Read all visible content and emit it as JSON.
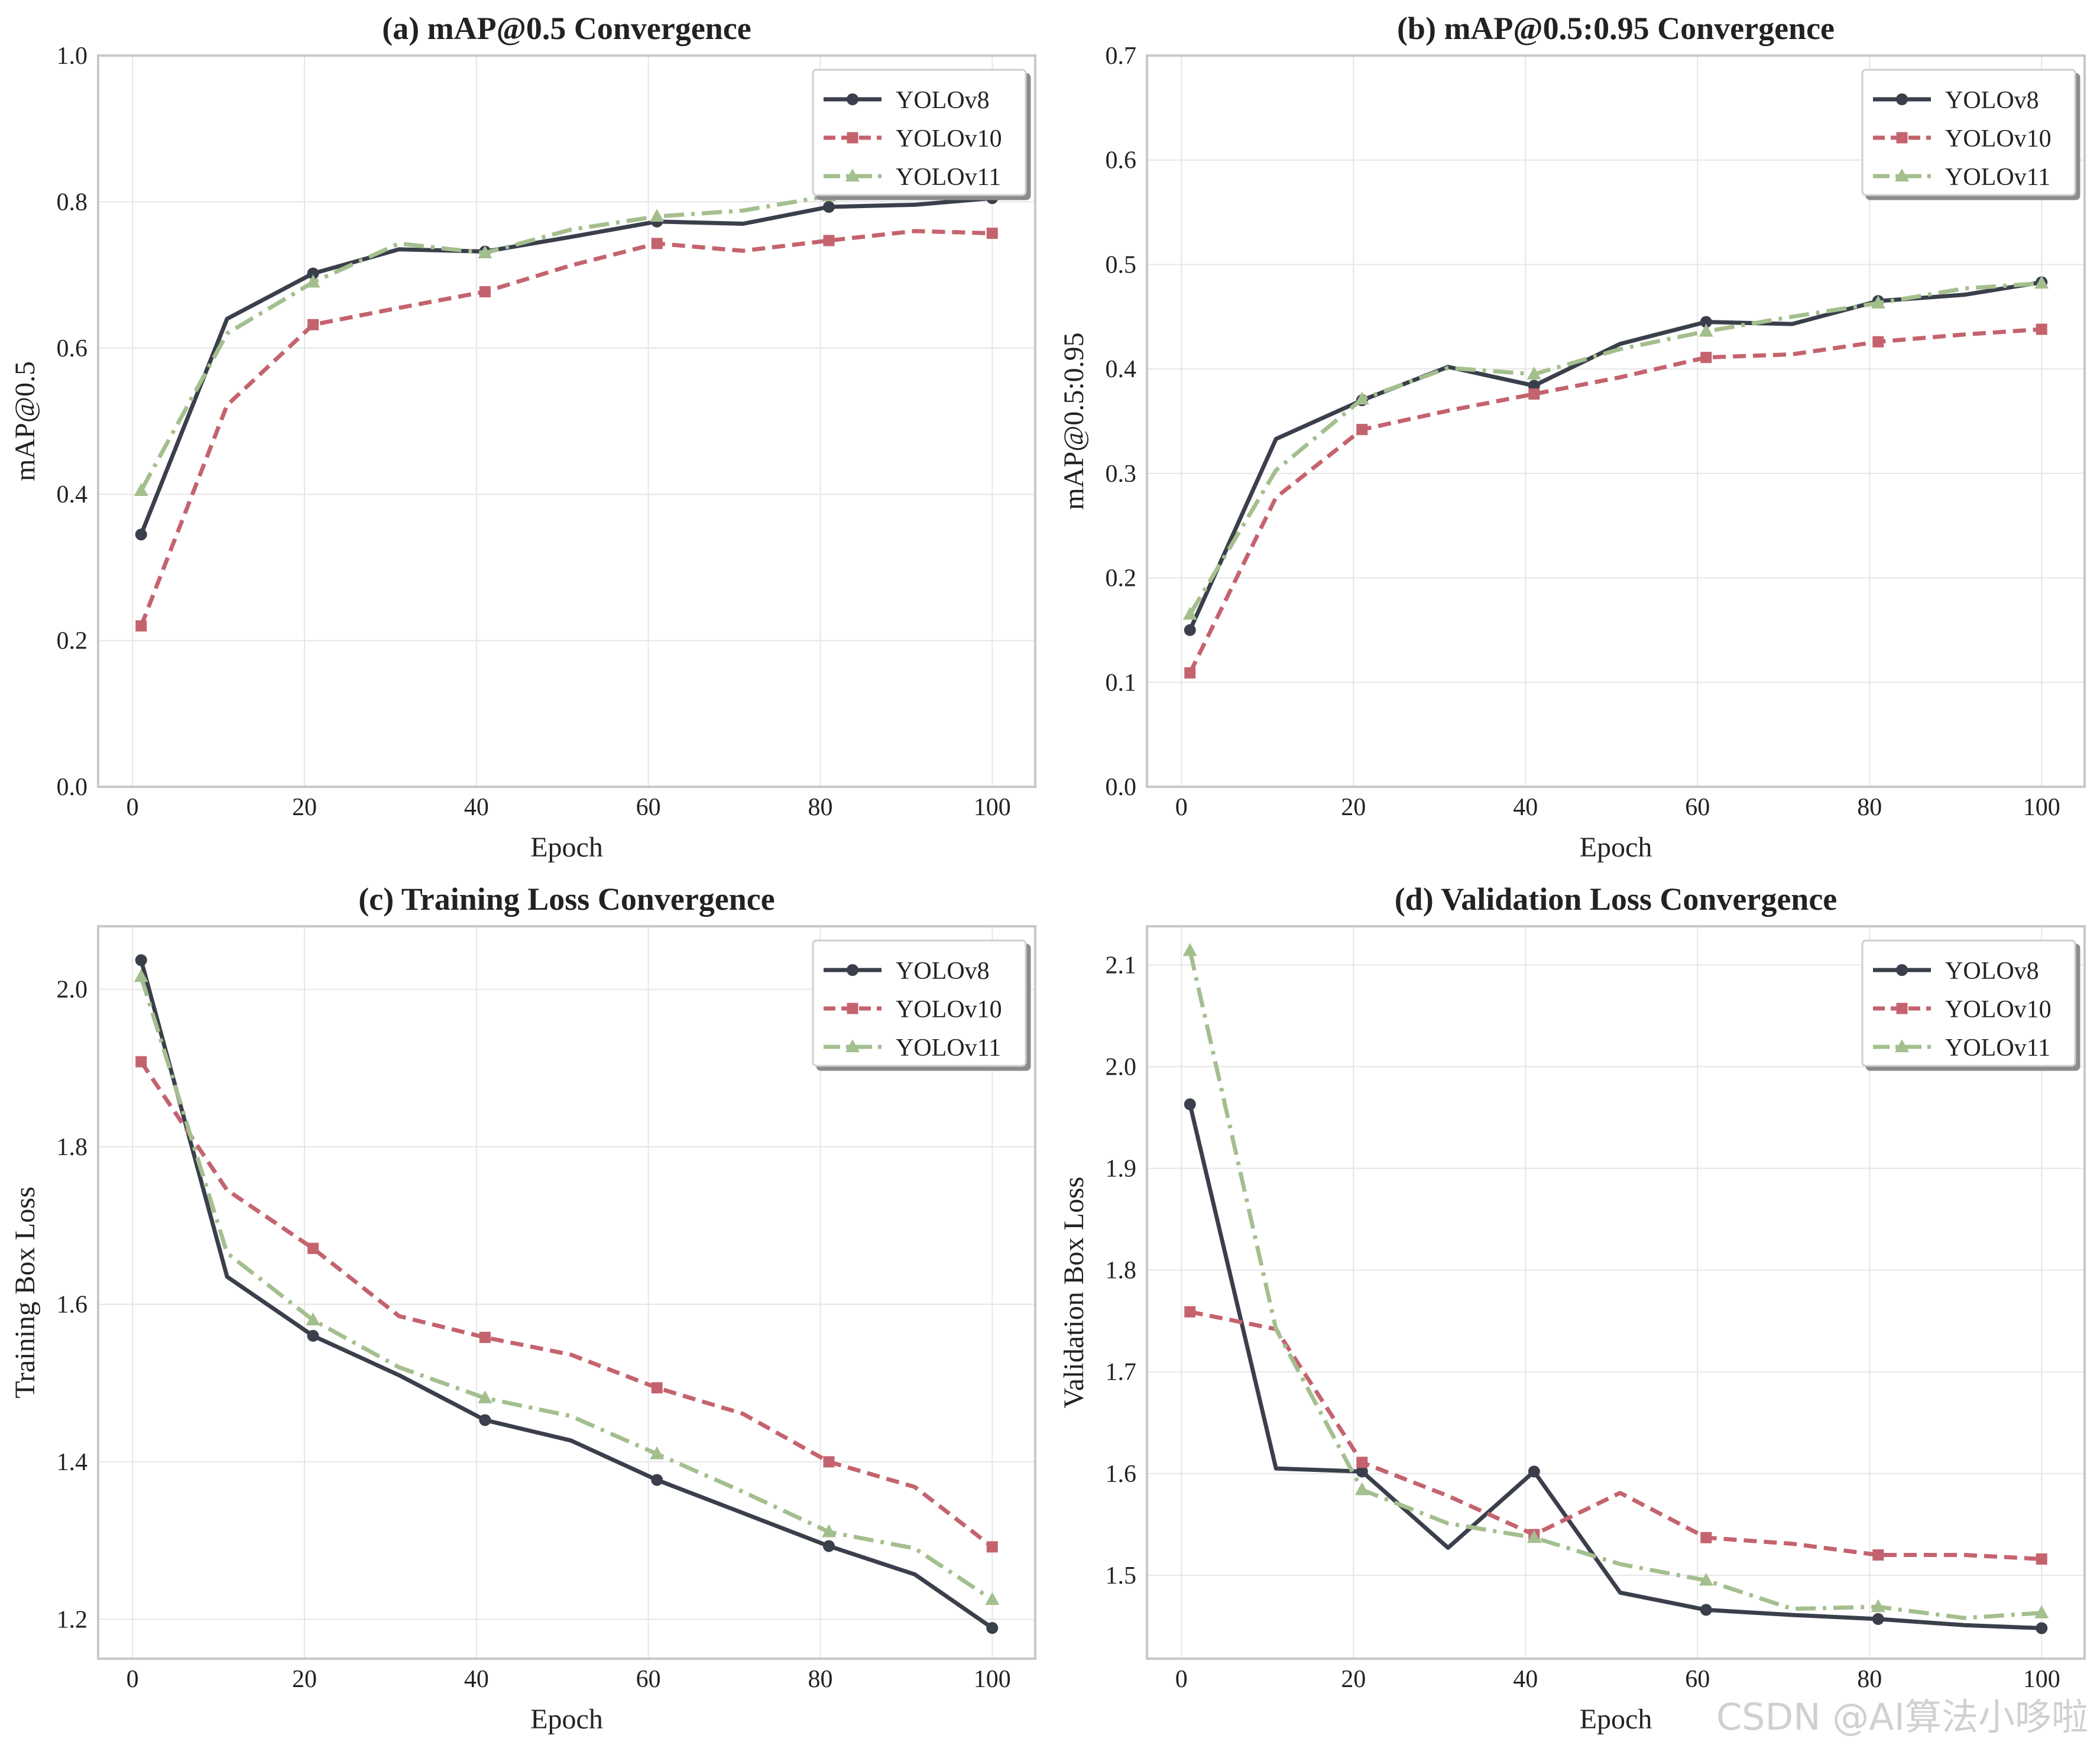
{
  "watermark": "CSDN @AI算法小哆啦",
  "colors": {
    "yolov8": "#3a3f4b",
    "yolov10": "#c4636e",
    "yolov11": "#a3bf8e",
    "grid": "#e6e6e6",
    "frame": "#c8c8c8"
  },
  "chart_data": [
    {
      "type": "line",
      "title": "(a) mAP@0.5 Convergence",
      "xlabel": "Epoch",
      "ylabel": "mAP@0.5",
      "xlim": [
        -4,
        105
      ],
      "ylim": [
        0.0,
        1.0
      ],
      "xticks": [
        0,
        20,
        40,
        60,
        80,
        100
      ],
      "xtick_labels": [
        "0",
        "20",
        "40",
        "60",
        "80",
        "100"
      ],
      "yticks": [
        0.0,
        0.2,
        0.4,
        0.6,
        0.8,
        1.0
      ],
      "ytick_labels": [
        "0.0",
        "0.2",
        "0.4",
        "0.6",
        "0.8",
        "1.0"
      ],
      "legend_position": "top-right",
      "x": [
        1,
        11,
        21,
        31,
        41,
        51,
        61,
        71,
        81,
        91,
        100
      ],
      "series": [
        {
          "name": "YOLOv8",
          "key": "yolov8",
          "values": [
            0.345,
            0.64,
            0.702,
            0.735,
            0.732,
            0.752,
            0.773,
            0.77,
            0.793,
            0.796,
            0.805
          ]
        },
        {
          "name": "YOLOv10",
          "key": "yolov10",
          "values": [
            0.22,
            0.522,
            0.632,
            0.655,
            0.677,
            0.713,
            0.743,
            0.733,
            0.747,
            0.76,
            0.757
          ]
        },
        {
          "name": "YOLOv11",
          "key": "yolov11",
          "values": [
            0.405,
            0.62,
            0.69,
            0.743,
            0.73,
            0.762,
            0.78,
            0.788,
            0.808,
            0.812,
            0.815
          ]
        }
      ]
    },
    {
      "type": "line",
      "title": "(b) mAP@0.5:0.95 Convergence",
      "xlabel": "Epoch",
      "ylabel": "mAP@0.5:0.95",
      "xlim": [
        -4,
        105
      ],
      "ylim": [
        0.0,
        0.7
      ],
      "xticks": [
        0,
        20,
        40,
        60,
        80,
        100
      ],
      "xtick_labels": [
        "0",
        "20",
        "40",
        "60",
        "80",
        "100"
      ],
      "yticks": [
        0.0,
        0.1,
        0.2,
        0.3,
        0.4,
        0.5,
        0.6,
        0.7
      ],
      "ytick_labels": [
        "0.0",
        "0.1",
        "0.2",
        "0.3",
        "0.4",
        "0.5",
        "0.6",
        "0.7"
      ],
      "legend_position": "top-right",
      "x": [
        1,
        11,
        21,
        31,
        41,
        51,
        61,
        71,
        81,
        91,
        100
      ],
      "series": [
        {
          "name": "YOLOv8",
          "key": "yolov8",
          "values": [
            0.15,
            0.333,
            0.37,
            0.402,
            0.384,
            0.424,
            0.445,
            0.443,
            0.465,
            0.471,
            0.483
          ]
        },
        {
          "name": "YOLOv10",
          "key": "yolov10",
          "values": [
            0.109,
            0.277,
            0.342,
            0.36,
            0.376,
            0.392,
            0.411,
            0.414,
            0.426,
            0.433,
            0.438
          ]
        },
        {
          "name": "YOLOv11",
          "key": "yolov11",
          "values": [
            0.165,
            0.303,
            0.371,
            0.401,
            0.395,
            0.419,
            0.436,
            0.45,
            0.463,
            0.477,
            0.482
          ]
        }
      ]
    },
    {
      "type": "line",
      "title": "(c) Training Loss Convergence",
      "xlabel": "Epoch",
      "ylabel": "Training Box Loss",
      "xlim": [
        -4,
        105
      ],
      "ylim": [
        1.15,
        2.08
      ],
      "xticks": [
        0,
        20,
        40,
        60,
        80,
        100
      ],
      "xtick_labels": [
        "0",
        "20",
        "40",
        "60",
        "80",
        "100"
      ],
      "yticks": [
        1.2,
        1.4,
        1.6,
        1.8,
        2.0
      ],
      "ytick_labels": [
        "1.2",
        "1.4",
        "1.6",
        "1.8",
        "2.0"
      ],
      "legend_position": "top-right",
      "x": [
        1,
        11,
        21,
        31,
        41,
        51,
        61,
        71,
        81,
        91,
        100
      ],
      "series": [
        {
          "name": "YOLOv8",
          "key": "yolov8",
          "values": [
            2.037,
            1.635,
            1.56,
            1.51,
            1.453,
            1.427,
            1.377,
            1.335,
            1.293,
            1.257,
            1.189
          ]
        },
        {
          "name": "YOLOv10",
          "key": "yolov10",
          "values": [
            1.908,
            1.745,
            1.671,
            1.585,
            1.558,
            1.536,
            1.494,
            1.461,
            1.4,
            1.368,
            1.292
          ]
        },
        {
          "name": "YOLOv11",
          "key": "yolov11",
          "values": [
            2.016,
            1.665,
            1.58,
            1.52,
            1.481,
            1.458,
            1.41,
            1.362,
            1.311,
            1.29,
            1.225
          ]
        }
      ]
    },
    {
      "type": "line",
      "title": "(d) Validation Loss Convergence",
      "xlabel": "Epoch",
      "ylabel": "Validation Box Loss",
      "xlim": [
        -4,
        105
      ],
      "ylim": [
        1.418,
        2.138
      ],
      "xticks": [
        0,
        20,
        40,
        60,
        80,
        100
      ],
      "xtick_labels": [
        "0",
        "20",
        "40",
        "60",
        "80",
        "100"
      ],
      "yticks": [
        1.5,
        1.6,
        1.7,
        1.8,
        1.9,
        2.0,
        2.1
      ],
      "ytick_labels": [
        "1.5",
        "1.6",
        "1.7",
        "1.8",
        "1.9",
        "2.0",
        "2.1"
      ],
      "legend_position": "top-right",
      "x": [
        1,
        11,
        21,
        31,
        41,
        51,
        61,
        71,
        81,
        91,
        100
      ],
      "series": [
        {
          "name": "YOLOv8",
          "key": "yolov8",
          "values": [
            1.963,
            1.605,
            1.602,
            1.527,
            1.602,
            1.483,
            1.466,
            1.461,
            1.457,
            1.451,
            1.448
          ]
        },
        {
          "name": "YOLOv10",
          "key": "yolov10",
          "values": [
            1.759,
            1.742,
            1.611,
            1.578,
            1.54,
            1.581,
            1.537,
            1.531,
            1.52,
            1.52,
            1.516
          ]
        },
        {
          "name": "YOLOv11",
          "key": "yolov11",
          "values": [
            2.114,
            1.742,
            1.584,
            1.551,
            1.537,
            1.511,
            1.495,
            1.467,
            1.469,
            1.458,
            1.463
          ]
        }
      ]
    }
  ]
}
